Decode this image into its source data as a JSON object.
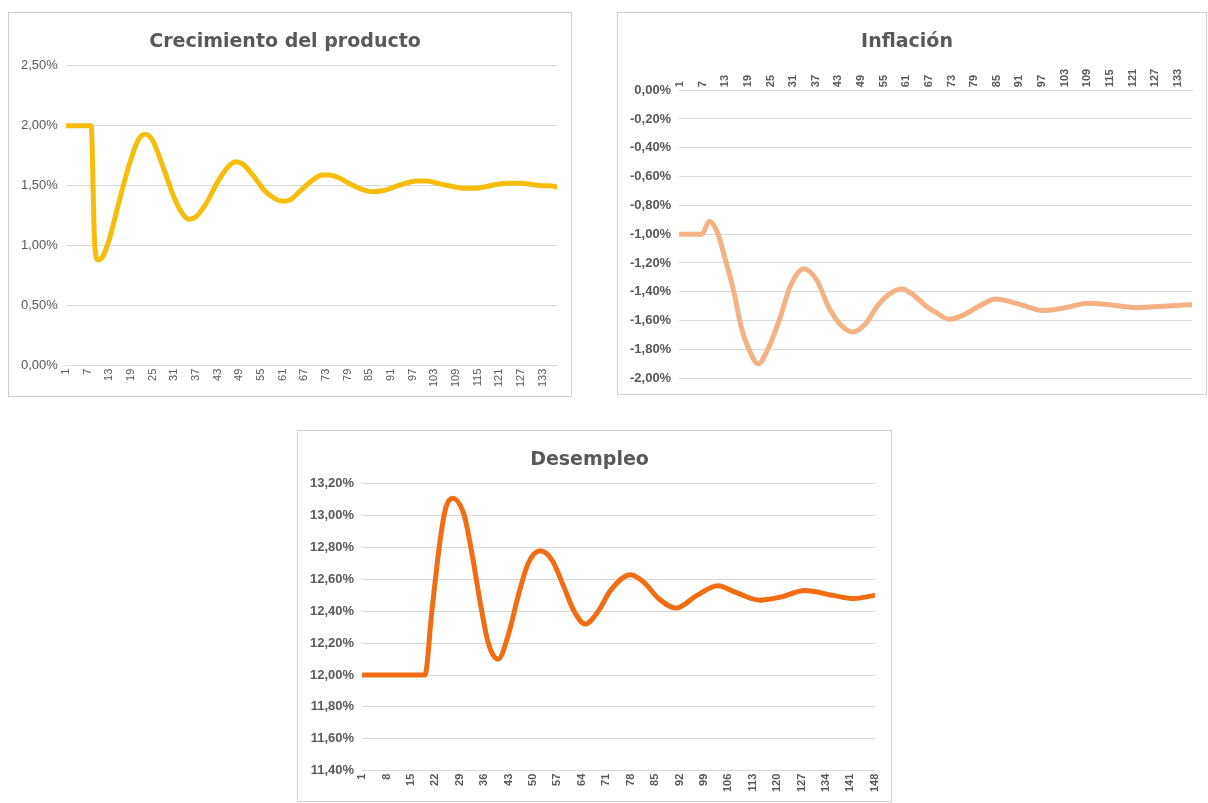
{
  "chart_data": [
    {
      "type": "line",
      "title": "Crecimiento del producto",
      "xlim": [
        1,
        137
      ],
      "xticks": [
        1,
        7,
        13,
        19,
        25,
        31,
        37,
        43,
        49,
        55,
        61,
        67,
        73,
        79,
        85,
        91,
        97,
        103,
        109,
        115,
        121,
        127,
        133
      ],
      "ylim": [
        0,
        2.5
      ],
      "yticks": [
        {
          "value": 0,
          "label": "0,00%"
        },
        {
          "value": 0.5,
          "label": "0,50%"
        },
        {
          "value": 1,
          "label": "1,00%"
        },
        {
          "value": 1.5,
          "label": "1,50%"
        },
        {
          "value": 2,
          "label": "2,00%"
        },
        {
          "value": 2.5,
          "label": "2,50%"
        }
      ],
      "grid": "y",
      "legend": false,
      "marker": "none",
      "line_style": "solid",
      "series": [
        {
          "color": "#f7bd0a",
          "x": [
            1,
            8,
            9,
            10,
            11,
            13,
            16,
            19,
            21,
            23,
            25,
            28,
            31,
            33,
            35,
            37,
            40,
            43,
            46,
            48,
            50,
            53,
            56,
            59,
            61,
            63,
            66,
            69,
            72,
            74,
            77,
            80,
            83,
            86,
            89,
            92,
            95,
            98,
            101,
            104,
            107,
            111,
            114,
            117,
            120,
            124,
            127,
            130,
            133,
            135,
            137
          ],
          "values": [
            2.0,
            2.0,
            1.0,
            0.88,
            0.9,
            1.05,
            1.4,
            1.72,
            1.88,
            1.93,
            1.88,
            1.65,
            1.4,
            1.28,
            1.22,
            1.24,
            1.36,
            1.53,
            1.66,
            1.7,
            1.68,
            1.58,
            1.46,
            1.39,
            1.37,
            1.38,
            1.46,
            1.54,
            1.59,
            1.59,
            1.56,
            1.51,
            1.47,
            1.45,
            1.46,
            1.49,
            1.52,
            1.54,
            1.54,
            1.52,
            1.5,
            1.48,
            1.48,
            1.49,
            1.51,
            1.52,
            1.52,
            1.51,
            1.5,
            1.5,
            1.49
          ]
        }
      ]
    },
    {
      "type": "line",
      "title": "Inflación",
      "xlim": [
        1,
        137
      ],
      "xticks": [
        1,
        7,
        13,
        19,
        25,
        31,
        37,
        43,
        49,
        55,
        61,
        67,
        73,
        79,
        85,
        91,
        97,
        103,
        109,
        115,
        121,
        127,
        133
      ],
      "ylim": [
        -2,
        0
      ],
      "yticks": [
        {
          "value": -2,
          "label": "-2,00%"
        },
        {
          "value": -1.8,
          "label": "-1,80%"
        },
        {
          "value": -1.6,
          "label": "-1,60%"
        },
        {
          "value": -1.4,
          "label": "-1,40%"
        },
        {
          "value": -1.2,
          "label": "-1,20%"
        },
        {
          "value": -1,
          "label": "-1,00%"
        },
        {
          "value": -0.8,
          "label": "-0,80%"
        },
        {
          "value": -0.6,
          "label": "-0,60%"
        },
        {
          "value": -0.4,
          "label": "-0,40%"
        },
        {
          "value": -0.2,
          "label": "-0,20%"
        },
        {
          "value": 0,
          "label": "0,00%"
        }
      ],
      "grid": "y",
      "legend": false,
      "marker": "none",
      "line_style": "solid",
      "series": [
        {
          "color": "#f4b183",
          "x": [
            1,
            7,
            9,
            11,
            13.5,
            15.5,
            17.5,
            19.5,
            22,
            24.5,
            27.5,
            30.5,
            34,
            37.5,
            40.5,
            43.5,
            47,
            50.5,
            53.5,
            56.5,
            60,
            63.5,
            66.5,
            69.5,
            72.5,
            76.5,
            80.5,
            85,
            90.5,
            97.5,
            103.5,
            109.5,
            115,
            122.5,
            129.5,
            137
          ],
          "values": [
            -1.0,
            -1.0,
            -0.91,
            -0.98,
            -1.2,
            -1.4,
            -1.65,
            -1.8,
            -1.9,
            -1.8,
            -1.6,
            -1.36,
            -1.24,
            -1.32,
            -1.5,
            -1.62,
            -1.68,
            -1.62,
            -1.5,
            -1.42,
            -1.38,
            -1.43,
            -1.5,
            -1.55,
            -1.59,
            -1.56,
            -1.5,
            -1.45,
            -1.48,
            -1.53,
            -1.51,
            -1.48,
            -1.49,
            -1.51,
            -1.5,
            -1.49
          ]
        }
      ]
    },
    {
      "type": "line",
      "title": "Desempleo",
      "xlim": [
        1,
        148
      ],
      "xticks": [
        1,
        8,
        15,
        22,
        29,
        36,
        43,
        50,
        57,
        64,
        71,
        78,
        85,
        92,
        99,
        106,
        113,
        120,
        127,
        134,
        141,
        148
      ],
      "ylim": [
        11.4,
        13.2
      ],
      "yticks": [
        {
          "value": 11.4,
          "label": "11,40%"
        },
        {
          "value": 11.6,
          "label": "11,60%"
        },
        {
          "value": 11.8,
          "label": "11,80%"
        },
        {
          "value": 12,
          "label": "12,00%"
        },
        {
          "value": 12.2,
          "label": "12,20%"
        },
        {
          "value": 12.4,
          "label": "12,40%"
        },
        {
          "value": 12.6,
          "label": "12,60%"
        },
        {
          "value": 12.8,
          "label": "12,80%"
        },
        {
          "value": 13,
          "label": "13,00%"
        },
        {
          "value": 13.2,
          "label": "13,20%"
        }
      ],
      "grid": "y",
      "legend": false,
      "marker": "none",
      "line_style": "solid",
      "series": [
        {
          "color": "#f26d12",
          "x": [
            1,
            19,
            21,
            23.4,
            25,
            27,
            30.3,
            32.6,
            34.9,
            37.2,
            40,
            42.9,
            45.8,
            48.6,
            52,
            55.5,
            58.9,
            61.8,
            65,
            68.7,
            72.2,
            78,
            81.9,
            86,
            91,
            97,
            103,
            108,
            115,
            121,
            128,
            136,
            142,
            148
          ],
          "values": [
            12.0,
            12.0,
            12.4,
            12.85,
            13.05,
            13.11,
            13.0,
            12.75,
            12.45,
            12.2,
            12.1,
            12.25,
            12.5,
            12.7,
            12.78,
            12.72,
            12.55,
            12.4,
            12.32,
            12.4,
            12.53,
            12.63,
            12.58,
            12.48,
            12.42,
            12.5,
            12.56,
            12.52,
            12.47,
            12.49,
            12.53,
            12.5,
            12.48,
            12.5
          ]
        }
      ]
    }
  ]
}
